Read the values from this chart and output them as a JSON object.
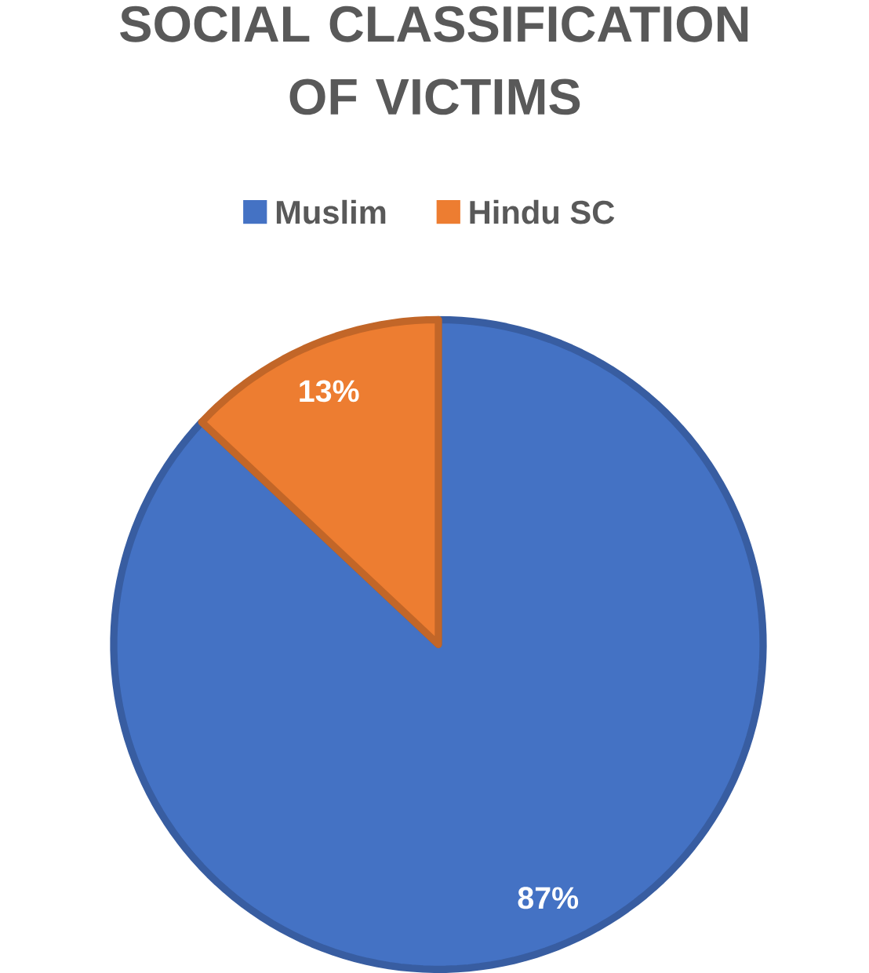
{
  "chart_data": {
    "type": "pie",
    "title": "SOCIAL CLASSIFICATION OF VICTIMS",
    "categories": [
      "Muslim",
      "Hindu SC"
    ],
    "values": [
      87,
      13
    ],
    "colors": [
      "#4472c4",
      "#ed7d31"
    ],
    "value_labels": [
      "87%",
      "13%"
    ],
    "legend": "top"
  }
}
